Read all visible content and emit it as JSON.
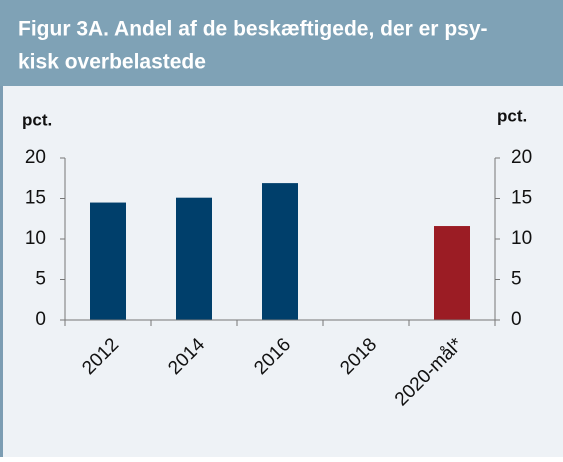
{
  "chart_data": {
    "type": "bar",
    "title": [
      "Figur 3A. Andel af de beskæftigede, der er psy-",
      "kisk overbelastede"
    ],
    "y_label": "pct.",
    "y2_label": "pct.",
    "categories": [
      "2012",
      "2014",
      "2016",
      "2018",
      "2020-mål*"
    ],
    "values": [
      14.5,
      15.1,
      16.9,
      null,
      11.6
    ],
    "colors": [
      "#003f6b",
      "#003f6b",
      "#003f6b",
      "#003f6b",
      "#9b1c24"
    ],
    "ylim": [
      0,
      20
    ],
    "yticks": [
      0,
      5,
      10,
      15,
      20
    ],
    "y2lim": [
      0,
      20
    ],
    "y2ticks": [
      0,
      5,
      10,
      15,
      20
    ],
    "grid": false
  }
}
